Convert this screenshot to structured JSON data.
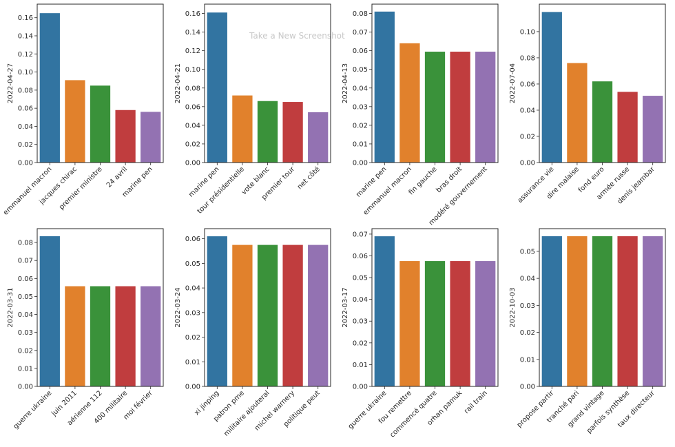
{
  "overlay_text": "Take a New Screenshot",
  "palette": [
    "#3274a1",
    "#e1812c",
    "#3a923a",
    "#c03d3e",
    "#9372b2"
  ],
  "chart_data": [
    {
      "type": "bar",
      "ylabel": "2022-04-27",
      "ylim": [
        0,
        0.175
      ],
      "yticks": [
        "0.00",
        "0.02",
        "0.04",
        "0.06",
        "0.08",
        "0.10",
        "0.12",
        "0.14",
        "0.16"
      ],
      "categories": [
        "emmanuel macron",
        "jacques chirac",
        "premier ministre",
        "24 avril",
        "marine pen"
      ],
      "values": [
        0.165,
        0.091,
        0.085,
        0.058,
        0.056
      ]
    },
    {
      "type": "bar",
      "ylabel": "2022-04-21",
      "ylim": [
        0,
        0.17
      ],
      "yticks": [
        "0.00",
        "0.02",
        "0.04",
        "0.06",
        "0.08",
        "0.10",
        "0.12",
        "0.14",
        "0.16"
      ],
      "categories": [
        "marine pen",
        "tour présidentielle",
        "vote blanc",
        "premier tour",
        "net côté"
      ],
      "values": [
        0.161,
        0.072,
        0.066,
        0.065,
        0.054
      ]
    },
    {
      "type": "bar",
      "ylabel": "2022-04-13",
      "ylim": [
        0,
        0.085
      ],
      "yticks": [
        "0.00",
        "0.01",
        "0.02",
        "0.03",
        "0.04",
        "0.05",
        "0.06",
        "0.07",
        "0.08"
      ],
      "categories": [
        "marine pen",
        "emmanuel macron",
        "fin gauche",
        "bras droit",
        "modéré gouvernement"
      ],
      "values": [
        0.081,
        0.064,
        0.0595,
        0.0595,
        0.0595
      ]
    },
    {
      "type": "bar",
      "ylabel": "2022-07-04",
      "ylim": [
        0,
        0.121
      ],
      "yticks": [
        "0.00",
        "0.02",
        "0.04",
        "0.06",
        "0.08",
        "0.10"
      ],
      "categories": [
        "assurance vie",
        "dire malaise",
        "fond euro",
        "armée russe",
        "denis jeambar"
      ],
      "values": [
        0.115,
        0.076,
        0.062,
        0.054,
        0.051
      ]
    },
    {
      "type": "bar",
      "ylabel": "2022-03-31",
      "ylim": [
        0,
        0.0877
      ],
      "yticks": [
        "0.00",
        "0.01",
        "0.02",
        "0.03",
        "0.04",
        "0.05",
        "0.06",
        "0.07",
        "0.08"
      ],
      "categories": [
        "guerre ukraine",
        "juin 2011",
        "aérienne 112",
        "400 militaire",
        "moi février"
      ],
      "values": [
        0.0835,
        0.0557,
        0.0557,
        0.0557,
        0.0557
      ]
    },
    {
      "type": "bar",
      "ylabel": "2022-03-24",
      "ylim": [
        0,
        0.0641
      ],
      "yticks": [
        "0.00",
        "0.01",
        "0.02",
        "0.03",
        "0.04",
        "0.05",
        "0.06"
      ],
      "categories": [
        "xi jinping",
        "patron pme",
        "militaire ajouteral",
        "michel warnery",
        "politique peut"
      ],
      "values": [
        0.061,
        0.0575,
        0.0575,
        0.0575,
        0.0575
      ]
    },
    {
      "type": "bar",
      "ylabel": "2022-03-17",
      "ylim": [
        0,
        0.0725
      ],
      "yticks": [
        "0.00",
        "0.01",
        "0.02",
        "0.03",
        "0.04",
        "0.05",
        "0.06",
        "0.07"
      ],
      "categories": [
        "guerre ukraine",
        "fou remettre",
        "commencé quatre",
        "orhan pamuk",
        "rail train"
      ],
      "values": [
        0.069,
        0.0576,
        0.0576,
        0.0576,
        0.0576
      ]
    },
    {
      "type": "bar",
      "ylabel": "2022-10-03",
      "ylim": [
        0,
        0.0584
      ],
      "yticks": [
        "0.00",
        "0.01",
        "0.02",
        "0.03",
        "0.04",
        "0.05"
      ],
      "categories": [
        "propose partir",
        "tranché pari",
        "grand vintage",
        "parfois synthèse",
        "taux directeur"
      ],
      "values": [
        0.0556,
        0.0556,
        0.0556,
        0.0556,
        0.0556
      ]
    }
  ]
}
